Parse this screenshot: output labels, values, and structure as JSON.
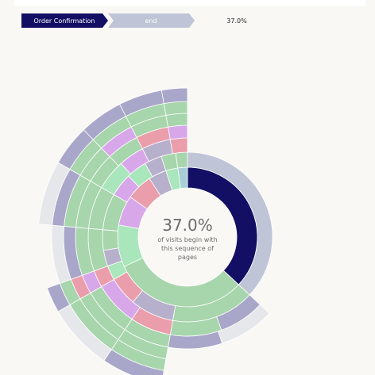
{
  "breadcrumb": {
    "steps": [
      {
        "label": "Order Confirmation",
        "color": "#120f64",
        "text_color": "#ffffff"
      },
      {
        "label": "end",
        "color": "#bfc4d6",
        "text_color": "#ffffff"
      }
    ],
    "percentage": "37.0%"
  },
  "center": {
    "percentage": "37.0%",
    "line1": "of visits begin with",
    "line2": "this sequence of",
    "line3": "pages"
  },
  "colors": {
    "navy": "#120f64",
    "slate": "#bfc4d6",
    "lavender": "#a9a7c9",
    "light_grey": "#e5e7ea",
    "sage": "#a7d5ac",
    "mint": "#a9e6bb",
    "pink": "#ea9dab",
    "violet": "#d8a7ea",
    "greyviolet": "#b7b0cc",
    "teal": "#a8cfd6",
    "background": "#f9f8f4"
  },
  "chart_data": {
    "type": "sunburst",
    "title": "",
    "highlighted_sequence": [
      "Order Confirmation",
      "end"
    ],
    "highlighted_share_percent": 37.0
  }
}
